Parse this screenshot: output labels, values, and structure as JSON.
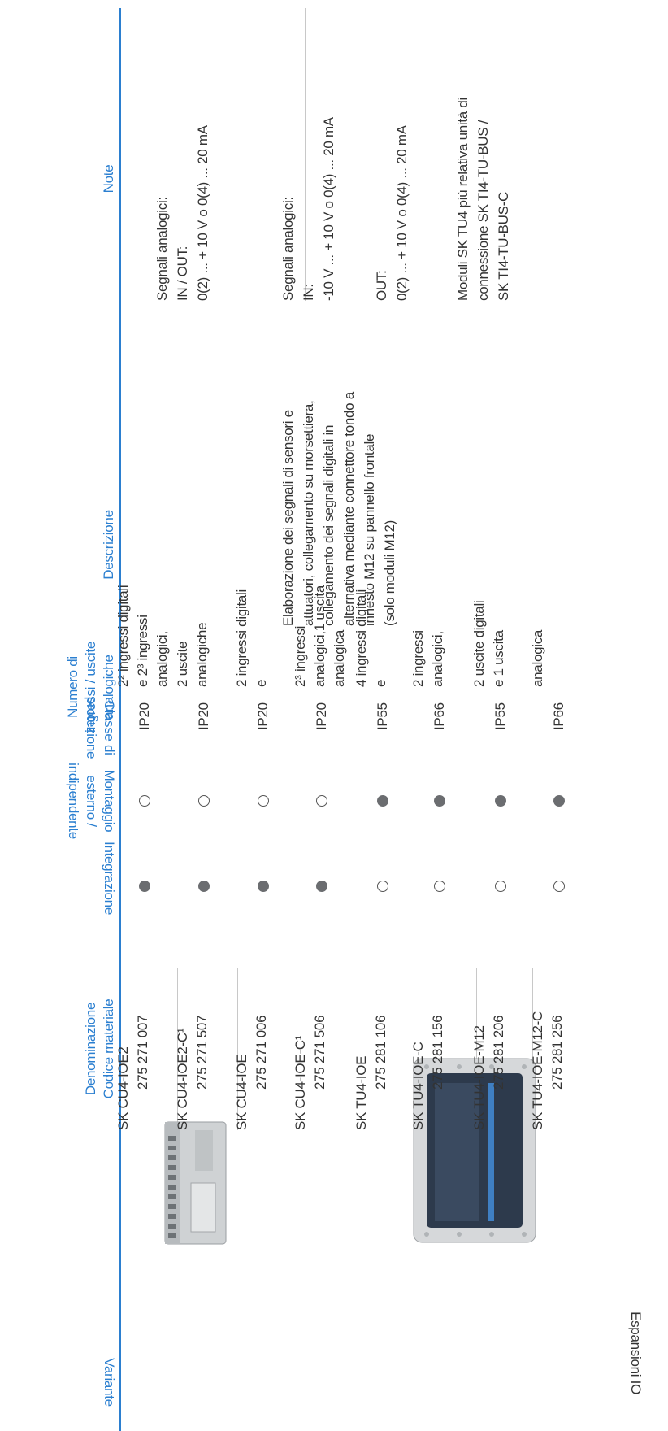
{
  "headers": {
    "variante": "Variante",
    "denominazione": [
      "Denominazione",
      "Codice materiale"
    ],
    "integrazione": "Integrazione",
    "montaggio": [
      "Montaggio",
      "esterno /",
      "indipendente"
    ],
    "protezione": [
      "Classe di",
      "protezione"
    ],
    "ingressi": [
      "Numero di",
      "ingressi / uscite",
      "analogiche"
    ],
    "descrizione": "Descrizione",
    "note": "Note"
  },
  "group_label": "Espansioni IO",
  "rows": [
    {
      "name": "SK CU4-IOE2",
      "code": "275 271 007",
      "integrazione": true,
      "montaggio": false,
      "protezione": "IP20",
      "ingressi": [
        "2² ingressi digitali",
        "e 2³ ingressi",
        "analogici,"
      ]
    },
    {
      "name": "SK CU4-IOE2-C¹",
      "code": "275 271 507",
      "integrazione": true,
      "montaggio": false,
      "protezione": "IP20",
      "ingressi": [
        "2 uscite",
        "analogiche"
      ]
    },
    {
      "name": "SK CU4-IOE",
      "code": "275 271 006",
      "integrazione": true,
      "montaggio": false,
      "protezione": "IP20",
      "ingressi": [
        "2 ingressi digitali",
        "e"
      ]
    },
    {
      "name": "SK CU4-IOE-C¹",
      "code": "275 271 506",
      "integrazione": true,
      "montaggio": false,
      "protezione": "IP20",
      "ingressi": [
        "2³ ingressi",
        "analogici,1 uscita",
        "analogica"
      ]
    },
    {
      "name": "SK TU4-IOE",
      "code": "275 281 106",
      "integrazione": false,
      "montaggio": true,
      "protezione": "IP55",
      "ingressi": [
        "4 ingressi digitali",
        "e"
      ]
    },
    {
      "name": "SK TU4-IOE-C",
      "code": "275 281 156",
      "integrazione": false,
      "montaggio": true,
      "protezione": "IP66",
      "ingressi": [
        "2 ingressi",
        "analogici,"
      ]
    },
    {
      "name": "SK TU4-IOE-M12",
      "code": "275 281 206",
      "integrazione": false,
      "montaggio": true,
      "protezione": "IP55",
      "ingressi": [
        "2 uscite digitali",
        "e 1 uscita"
      ]
    },
    {
      "name": "SK TU4-IOE-M12-C",
      "code": "275 281 256",
      "integrazione": false,
      "montaggio": true,
      "protezione": "IP66",
      "ingressi": [
        "analogica"
      ]
    }
  ],
  "descrizione": [
    "Elaborazione dei segnali di sensori e",
    "attuatori, collegamento su morsettiera,",
    "collegamento dei segnali digitali in",
    "alternativa mediante connettore tondo a",
    "innesto M12 su pannello frontale",
    "(solo moduli M12)"
  ],
  "note": [
    [
      "Segnali analogici:",
      "IN / OUT:",
      "0(2) ... + 10 V o 0(4) ... 20 mA"
    ],
    [
      "Segnali analogici:",
      "IN:",
      "-10 V ... + 10 V o 0(4) ... 20 mA"
    ],
    [
      "OUT:",
      "0(2) ... + 10 V o 0(4) ... 20 mA"
    ],
    [
      "Moduli SK TU4 più relativa unità di",
      "connessione SK TI4-TU-BUS /",
      "SK TI4-TU-BUS-C"
    ]
  ]
}
